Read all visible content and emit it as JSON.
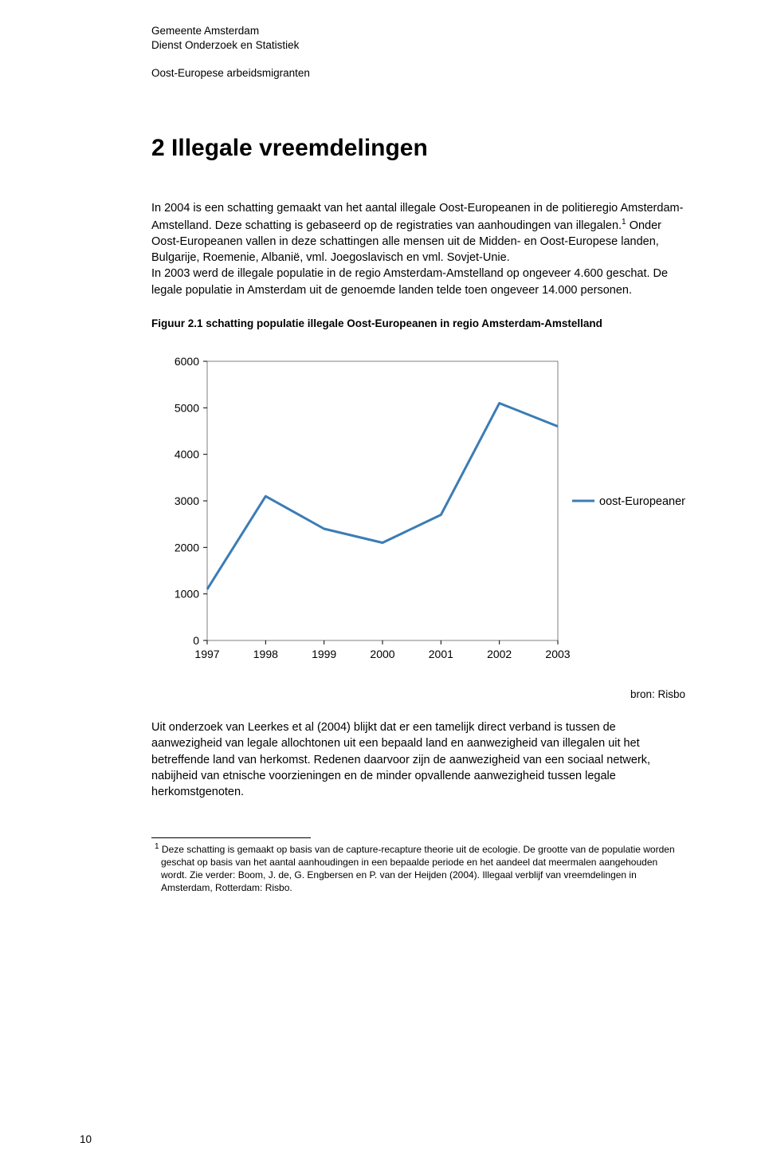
{
  "header": {
    "line1": "Gemeente Amsterdam",
    "line2": "Dienst Onderzoek en Statistiek",
    "subtitle": "Oost-Europese arbeidsmigranten"
  },
  "section_title": "2 Illegale vreemdelingen",
  "paragraph1": "In 2004 is een schatting gemaakt van het aantal illegale Oost-Europeanen in de politieregio Amsterdam-Amstelland. Deze schatting is gebaseerd op de registraties van aanhoudingen van illegalen.",
  "paragraph1_after_sup": " Onder Oost-Europeanen vallen in deze schattingen alle mensen uit de Midden- en Oost-Europese landen, Bulgarije, Roemenie, Albanië, vml. Joegoslavisch en vml. Sovjet-Unie.",
  "paragraph1_cont": "In 2003 werd de illegale populatie in de regio Amsterdam-Amstelland op ongeveer 4.600 geschat. De legale populatie in Amsterdam uit de genoemde landen telde toen ongeveer 14.000 personen.",
  "figure_label": "Figuur 2.1 schatting populatie illegale Oost-Europeanen in regio Amsterdam-Amstelland",
  "chart": {
    "type": "line",
    "x_values": [
      1997,
      1998,
      1999,
      2000,
      2001,
      2002,
      2003
    ],
    "y_values": [
      1100,
      3100,
      2400,
      2100,
      2700,
      5100,
      4600
    ],
    "y_ticks": [
      0,
      1000,
      2000,
      3000,
      4000,
      5000,
      6000
    ],
    "x_ticks": [
      1997,
      1998,
      1999,
      2000,
      2001,
      2002,
      2003
    ],
    "ylim": [
      0,
      6000
    ],
    "xlim": [
      1997,
      2003
    ],
    "line_color": "#3b7cb5",
    "line_width": 3,
    "border_color": "#7f7f7f",
    "background_color": "#ffffff",
    "plot_border_width": 1,
    "legend_label": "oost-Europeanen",
    "legend_line_color": "#3b7cb5",
    "tick_font_size": 14
  },
  "source": "bron: Risbo",
  "paragraph2": "Uit onderzoek van Leerkes et al (2004) blijkt dat er een tamelijk direct verband is tussen de aanwezigheid van legale allochtonen uit een bepaald land en aanwezigheid van illegalen uit het betreffende land van herkomst. Redenen daarvoor zijn de aanwezigheid van een sociaal netwerk, nabijheid van etnische voorzieningen en de minder opvallende aanwezigheid tussen legale herkomstgenoten.",
  "footnote": {
    "marker": "1",
    "text": " Deze schatting is gemaakt op basis van de capture-recapture theorie uit de ecologie. De grootte van de populatie worden geschat op basis van het aantal aanhoudingen in een bepaalde periode en het aandeel dat meermalen aangehouden wordt. Zie verder: Boom, J. de, G. Engbersen en P. van der Heijden (2004). Illegaal verblijf van vreemdelingen in Amsterdam, Rotterdam: Risbo."
  },
  "page_number": "10"
}
